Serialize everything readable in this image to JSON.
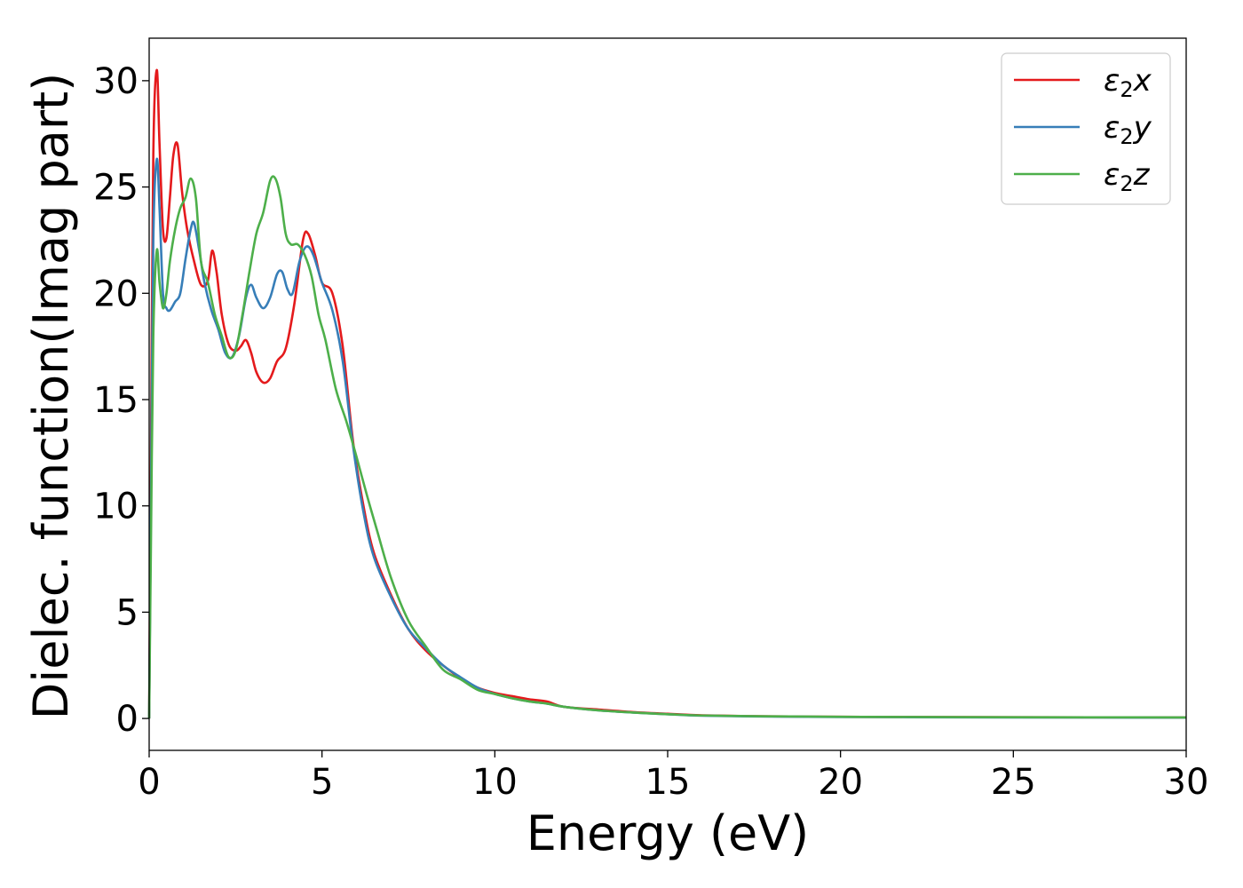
{
  "chart_data": {
    "type": "line",
    "title": "",
    "xlabel": "Energy (eV)",
    "ylabel": "Dielec. function(Imag part)",
    "xlim": [
      0,
      30
    ],
    "ylim": [
      -1.5,
      32
    ],
    "xticks": [
      0,
      5,
      10,
      15,
      20,
      25,
      30
    ],
    "yticks": [
      0,
      5,
      10,
      15,
      20,
      25,
      30
    ],
    "grid": false,
    "legend_position": "top-right",
    "series": [
      {
        "name": "ε₂x",
        "legend_base": "ε",
        "legend_sub": "2",
        "legend_suffix": "x",
        "color": "#e41a1c",
        "x": [
          0,
          0.05,
          0.12,
          0.22,
          0.3,
          0.4,
          0.5,
          0.6,
          0.7,
          0.82,
          0.95,
          1.1,
          1.3,
          1.5,
          1.7,
          1.82,
          1.95,
          2.1,
          2.3,
          2.5,
          2.65,
          2.8,
          2.95,
          3.1,
          3.3,
          3.5,
          3.7,
          3.95,
          4.2,
          4.45,
          4.6,
          4.8,
          5.0,
          5.3,
          5.6,
          5.9,
          6.2,
          6.5,
          7.0,
          7.5,
          8.0,
          8.5,
          9.0,
          9.5,
          10.0,
          10.5,
          11.0,
          11.5,
          12.0,
          13.0,
          14.0,
          15.0,
          16.0,
          18.0,
          20.0,
          22.0,
          25.0,
          30.0
        ],
        "y": [
          0.0,
          12.0,
          26.5,
          30.5,
          27.0,
          23.0,
          22.6,
          24.5,
          26.5,
          27.0,
          24.8,
          23.0,
          21.5,
          20.4,
          20.6,
          22.0,
          21.0,
          19.0,
          17.6,
          17.3,
          17.5,
          17.8,
          17.2,
          16.3,
          15.8,
          16.0,
          16.8,
          17.4,
          19.5,
          22.5,
          22.8,
          21.8,
          20.5,
          20.0,
          17.5,
          13.0,
          10.0,
          7.8,
          5.8,
          4.2,
          3.2,
          2.5,
          1.9,
          1.45,
          1.2,
          1.05,
          0.9,
          0.8,
          0.55,
          0.42,
          0.3,
          0.22,
          0.15,
          0.1,
          0.08,
          0.07,
          0.06,
          0.05
        ]
      },
      {
        "name": "ε₂y",
        "legend_base": "ε",
        "legend_sub": "2",
        "legend_suffix": "y",
        "color": "#377eb8",
        "x": [
          0,
          0.05,
          0.12,
          0.22,
          0.3,
          0.4,
          0.5,
          0.6,
          0.75,
          0.9,
          1.05,
          1.2,
          1.3,
          1.45,
          1.6,
          1.8,
          2.0,
          2.2,
          2.4,
          2.6,
          2.8,
          2.95,
          3.1,
          3.3,
          3.5,
          3.7,
          3.85,
          4.0,
          4.15,
          4.35,
          4.55,
          4.75,
          5.0,
          5.3,
          5.6,
          5.9,
          6.2,
          6.5,
          7.0,
          7.5,
          8.0,
          8.5,
          9.0,
          9.5,
          10.0,
          10.5,
          11.0,
          11.5,
          12.0,
          13.0,
          14.0,
          15.0,
          16.0,
          18.0,
          20.0,
          22.0,
          25.0,
          30.0
        ],
        "y": [
          0.0,
          10.0,
          22.5,
          26.3,
          24.0,
          20.0,
          19.3,
          19.2,
          19.6,
          20.0,
          21.6,
          23.0,
          23.3,
          22.0,
          20.5,
          19.2,
          18.3,
          17.2,
          17.0,
          18.0,
          19.8,
          20.4,
          19.8,
          19.3,
          19.8,
          20.9,
          21.0,
          20.2,
          20.0,
          21.5,
          22.2,
          21.8,
          20.5,
          19.2,
          16.8,
          12.8,
          9.7,
          7.6,
          5.7,
          4.2,
          3.3,
          2.5,
          1.95,
          1.45,
          1.15,
          0.95,
          0.8,
          0.7,
          0.55,
          0.38,
          0.28,
          0.2,
          0.13,
          0.09,
          0.07,
          0.06,
          0.05,
          0.04
        ]
      },
      {
        "name": "ε₂z",
        "legend_base": "ε",
        "legend_sub": "2",
        "legend_suffix": "z",
        "color": "#4daf4a",
        "x": [
          0,
          0.05,
          0.12,
          0.22,
          0.3,
          0.4,
          0.5,
          0.6,
          0.75,
          0.9,
          1.05,
          1.2,
          1.35,
          1.5,
          1.7,
          1.9,
          2.1,
          2.3,
          2.5,
          2.7,
          2.9,
          3.1,
          3.3,
          3.5,
          3.65,
          3.8,
          3.95,
          4.1,
          4.3,
          4.5,
          4.7,
          4.9,
          5.1,
          5.4,
          5.7,
          6.0,
          6.3,
          6.6,
          7.0,
          7.5,
          8.0,
          8.5,
          9.0,
          9.5,
          10.0,
          10.5,
          11.0,
          11.5,
          12.0,
          13.0,
          14.0,
          15.0,
          16.0,
          18.0,
          20.0,
          22.0,
          25.0,
          30.0
        ],
        "y": [
          0.0,
          8.0,
          18.0,
          22.0,
          20.5,
          19.3,
          20.0,
          21.5,
          23.0,
          24.0,
          24.5,
          25.4,
          24.5,
          21.5,
          20.5,
          19.0,
          18.0,
          17.0,
          17.3,
          19.0,
          21.0,
          22.8,
          23.8,
          25.3,
          25.4,
          24.5,
          22.8,
          22.3,
          22.3,
          21.8,
          20.8,
          19.0,
          17.8,
          15.5,
          14.0,
          12.3,
          10.5,
          8.8,
          6.6,
          4.6,
          3.4,
          2.3,
          1.85,
          1.35,
          1.15,
          0.95,
          0.8,
          0.7,
          0.55,
          0.38,
          0.28,
          0.2,
          0.14,
          0.1,
          0.08,
          0.07,
          0.06,
          0.05
        ]
      }
    ]
  }
}
